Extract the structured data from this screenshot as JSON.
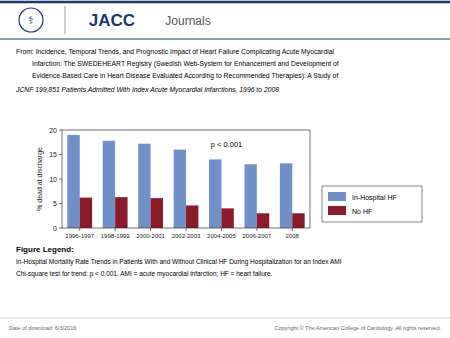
{
  "journal_title": "JACC",
  "journal_subtitle": "Journals",
  "logo": "⚕",
  "citation": [
    "From: Incidence, Temporal Trends, and Prognostic Impact of Heart Failure Complicating Acute Myocardial",
    "Infarction:  The SWEDEHEART Registry (Swedish Web-System for Enhancement and Development of",
    "Evidence-Based Care in Heart Disease Evaluated According to Recommended Therapies): A Study of",
    "JCNF  199,851 Patients Admitted With Index Acute Myocardial Infarctions, 1996 to 2008"
  ],
  "figure_legend_title": "Figure Legend:",
  "figure_legend": [
    "In-Hospital Mortality Rate Trends in Patients With and Without Clinical HF During Hospitalization for an Index AMI",
    "Chi-square test for trend: p < 0.001. AMI = acute myocardial infarction; HF = heart failure."
  ],
  "footer_left": "Date of download: 6/3/2016",
  "footer_right": "Copyright © The American College of Cardiology. All rights reserved.",
  "header_color": "#1B3A6B",
  "chart_data": {
    "type": "bar",
    "categories": [
      "1996-1997",
      "1998-1999",
      "2000-2001",
      "2002-2003",
      "2004-2005",
      "2006-2007",
      "2008"
    ],
    "series": [
      {
        "name": "In-Hospital HF",
        "color": "#7090C8",
        "values": [
          19.0,
          17.8,
          17.2,
          16.0,
          14.0,
          13.0,
          13.2
        ]
      },
      {
        "name": "No HF",
        "color": "#8B1A2A",
        "values": [
          6.2,
          6.3,
          6.1,
          4.6,
          4.0,
          3.0,
          3.0
        ]
      }
    ],
    "ylabel": "% dead at discharge",
    "ylim": [
      0,
      20
    ],
    "yticks": [
      0,
      5,
      10,
      15,
      20
    ],
    "annotation": "p < 0.001",
    "legend": "right",
    "grid": false
  }
}
